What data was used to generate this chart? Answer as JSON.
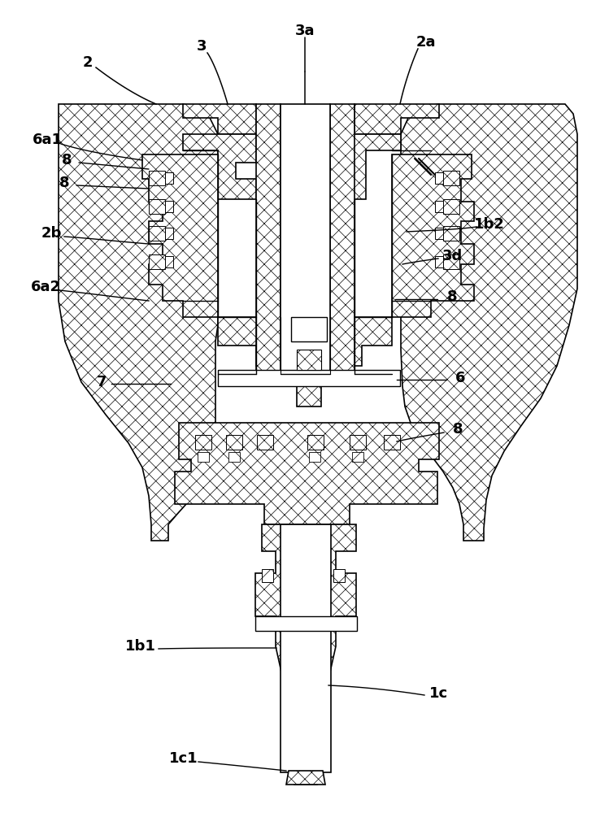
{
  "bg_color": "#ffffff",
  "labels": [
    [
      "3a",
      375,
      38
    ],
    [
      "3",
      248,
      57
    ],
    [
      "2",
      108,
      77
    ],
    [
      "2a",
      524,
      52
    ],
    [
      "6a1",
      58,
      172
    ],
    [
      "8",
      82,
      197
    ],
    [
      "8",
      79,
      225
    ],
    [
      "2b",
      63,
      287
    ],
    [
      "6a2",
      56,
      353
    ],
    [
      "7",
      125,
      470
    ],
    [
      "1b2",
      602,
      276
    ],
    [
      "3d",
      556,
      315
    ],
    [
      "8",
      556,
      365
    ],
    [
      "6",
      566,
      465
    ],
    [
      "8",
      563,
      528
    ],
    [
      "1b1",
      173,
      795
    ],
    [
      "1c1",
      226,
      933
    ],
    [
      "1c",
      540,
      853
    ]
  ],
  "leader_lines": [
    [
      [
        375,
        46
      ],
      [
        375,
        88
      ]
    ],
    [
      [
        255,
        65
      ],
      [
        275,
        88
      ]
    ],
    [
      [
        118,
        83
      ],
      [
        193,
        128
      ]
    ],
    [
      [
        514,
        60
      ],
      [
        492,
        128
      ]
    ],
    [
      [
        75,
        177
      ],
      [
        163,
        197
      ]
    ],
    [
      [
        97,
        200
      ],
      [
        183,
        208
      ]
    ],
    [
      [
        94,
        228
      ],
      [
        183,
        232
      ]
    ],
    [
      [
        79,
        291
      ],
      [
        175,
        300
      ]
    ],
    [
      [
        73,
        357
      ],
      [
        175,
        370
      ]
    ],
    [
      [
        137,
        472
      ],
      [
        210,
        472
      ]
    ],
    [
      [
        586,
        279
      ],
      [
        486,
        285
      ]
    ],
    [
      [
        539,
        318
      ],
      [
        486,
        325
      ]
    ],
    [
      [
        538,
        368
      ],
      [
        486,
        368
      ]
    ],
    [
      [
        549,
        467
      ],
      [
        488,
        467
      ]
    ],
    [
      [
        546,
        532
      ],
      [
        486,
        543
      ]
    ],
    [
      [
        195,
        798
      ],
      [
        340,
        798
      ]
    ],
    [
      [
        244,
        937
      ],
      [
        352,
        948
      ]
    ],
    [
      [
        522,
        855
      ],
      [
        404,
        843
      ]
    ]
  ]
}
